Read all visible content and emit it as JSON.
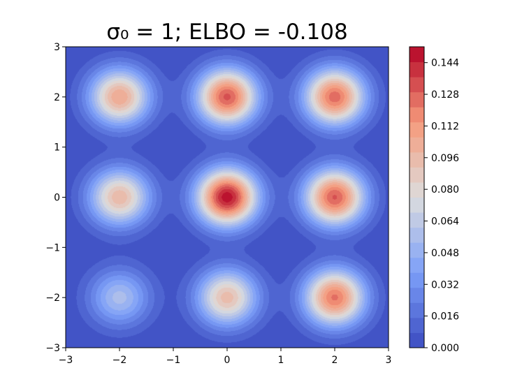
{
  "chart_data": {
    "type": "heatmap",
    "subtype": "filled-contour",
    "title": "σ₀ = 1; ELBO = -0.108",
    "xlabel": "",
    "ylabel": "",
    "xlim": [
      -3,
      3
    ],
    "ylim": [
      -3,
      3
    ],
    "x_ticks": [
      -3,
      -2,
      -1,
      0,
      1,
      2,
      3
    ],
    "y_ticks": [
      -3,
      -2,
      -1,
      0,
      1,
      2,
      3
    ],
    "x_tick_labels": [
      "−3",
      "−2",
      "−1",
      "0",
      "1",
      "2",
      "3"
    ],
    "y_tick_labels": [
      "−3",
      "−2",
      "−1",
      "0",
      "1",
      "2",
      "3"
    ],
    "grid": false,
    "colormap": "coolwarm",
    "levels": 20,
    "value_range": [
      0,
      0.152
    ],
    "components_sigma": 0.4,
    "components": [
      {
        "x": -2,
        "y": 2,
        "peak": 0.106
      },
      {
        "x": 0,
        "y": 2,
        "peak": 0.131
      },
      {
        "x": 2,
        "y": 2,
        "peak": 0.126
      },
      {
        "x": -2,
        "y": 0,
        "peak": 0.097
      },
      {
        "x": 0,
        "y": 0,
        "peak": 0.149
      },
      {
        "x": 2,
        "y": 0,
        "peak": 0.13
      },
      {
        "x": -2,
        "y": -2,
        "peak": 0.056
      },
      {
        "x": 0,
        "y": -2,
        "peak": 0.095
      },
      {
        "x": 2,
        "y": -2,
        "peak": 0.123
      }
    ],
    "colorbar": {
      "ticks": [
        0.0,
        0.016,
        0.032,
        0.048,
        0.064,
        0.08,
        0.096,
        0.112,
        0.128,
        0.144
      ],
      "tick_labels": [
        "0.000",
        "0.016",
        "0.032",
        "0.048",
        "0.064",
        "0.080",
        "0.096",
        "0.112",
        "0.128",
        "0.144"
      ]
    }
  }
}
